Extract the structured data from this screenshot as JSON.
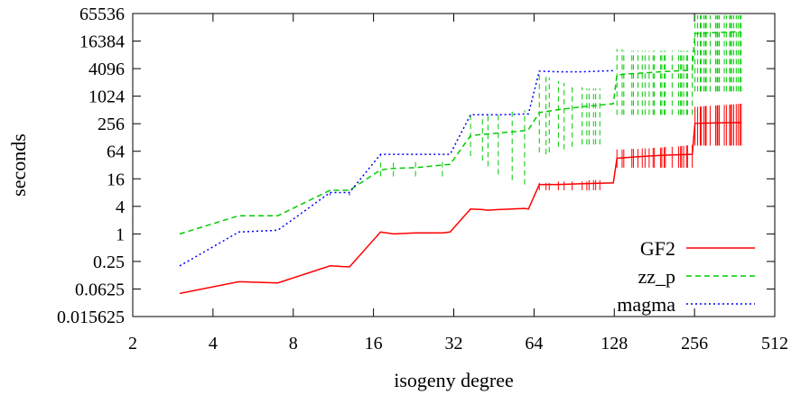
{
  "chart_data": {
    "type": "line",
    "title": "",
    "xlabel": "isogeny degree",
    "ylabel": "seconds",
    "x_scale": "log2",
    "y_scale": "log2",
    "xlim": [
      2,
      512
    ],
    "ylim": [
      0.015625,
      65536
    ],
    "x_ticks": [
      "2",
      "4",
      "8",
      "16",
      "32",
      "64",
      "128",
      "256",
      "512"
    ],
    "y_ticks": [
      "0.015625",
      "0.0625",
      "0.25",
      "1",
      "4",
      "16",
      "64",
      "256",
      "1024",
      "4096",
      "16384",
      "65536"
    ],
    "grid": false,
    "legend_position": "bottom-right",
    "series": [
      {
        "name": "GF2",
        "color": "#ff0000",
        "dash": "solid",
        "points": [
          [
            3,
            0.05
          ],
          [
            5,
            0.09
          ],
          [
            7,
            0.085
          ],
          [
            11,
            0.2
          ],
          [
            13,
            0.19
          ],
          [
            17,
            1.1
          ],
          [
            19,
            1.0
          ],
          [
            23,
            1.05
          ],
          [
            29,
            1.05
          ],
          [
            31,
            1.1
          ],
          [
            37,
            3.5
          ],
          [
            41,
            3.4
          ],
          [
            43,
            3.3
          ],
          [
            47,
            3.4
          ],
          [
            53,
            3.5
          ],
          [
            59,
            3.6
          ],
          [
            61,
            3.5
          ],
          [
            67,
            12
          ],
          [
            79,
            12
          ],
          [
            97,
            12.5
          ],
          [
            127,
            13
          ],
          [
            131,
            45
          ],
          [
            151,
            48
          ],
          [
            191,
            52
          ],
          [
            251,
            55
          ],
          [
            257,
            260
          ],
          [
            300,
            265
          ],
          [
            350,
            270
          ],
          [
            383,
            270
          ]
        ],
        "range_bars": [
          [
            67,
            9,
            13
          ],
          [
            71,
            9,
            13
          ],
          [
            73,
            9,
            13
          ],
          [
            79,
            9,
            14
          ],
          [
            83,
            9,
            14
          ],
          [
            89,
            9,
            14
          ],
          [
            97,
            9,
            14
          ],
          [
            101,
            9,
            14
          ],
          [
            103,
            9,
            15
          ],
          [
            107,
            9,
            15
          ],
          [
            109,
            9,
            15
          ],
          [
            113,
            9,
            15
          ],
          [
            131,
            28,
            70
          ],
          [
            137,
            28,
            70
          ],
          [
            139,
            28,
            70
          ],
          [
            149,
            28,
            72
          ],
          [
            151,
            28,
            72
          ],
          [
            157,
            28,
            72
          ],
          [
            163,
            28,
            74
          ],
          [
            167,
            28,
            74
          ],
          [
            173,
            28,
            74
          ],
          [
            179,
            28,
            76
          ],
          [
            181,
            28,
            76
          ],
          [
            191,
            28,
            76
          ],
          [
            193,
            28,
            78
          ],
          [
            197,
            28,
            78
          ],
          [
            199,
            28,
            80
          ],
          [
            211,
            28,
            80
          ],
          [
            223,
            28,
            82
          ],
          [
            227,
            28,
            82
          ],
          [
            229,
            28,
            84
          ],
          [
            233,
            28,
            84
          ],
          [
            239,
            28,
            86
          ],
          [
            241,
            28,
            86
          ],
          [
            251,
            28,
            88
          ],
          [
            257,
            85,
            600
          ],
          [
            263,
            85,
            600
          ],
          [
            269,
            85,
            610
          ],
          [
            271,
            85,
            610
          ],
          [
            277,
            85,
            620
          ],
          [
            281,
            85,
            620
          ],
          [
            283,
            85,
            630
          ],
          [
            293,
            85,
            630
          ],
          [
            307,
            85,
            640
          ],
          [
            311,
            85,
            640
          ],
          [
            313,
            85,
            650
          ],
          [
            317,
            85,
            650
          ],
          [
            331,
            85,
            660
          ],
          [
            337,
            85,
            660
          ],
          [
            347,
            85,
            670
          ],
          [
            349,
            85,
            670
          ],
          [
            353,
            85,
            680
          ],
          [
            359,
            85,
            680
          ],
          [
            367,
            85,
            690
          ],
          [
            373,
            85,
            690
          ],
          [
            379,
            85,
            700
          ],
          [
            383,
            85,
            700
          ]
        ]
      },
      {
        "name": "zz_p",
        "color": "#00cc00",
        "dash": "6,4",
        "points": [
          [
            3,
            1.0
          ],
          [
            5,
            2.5
          ],
          [
            7,
            2.5
          ],
          [
            11,
            9
          ],
          [
            13,
            9
          ],
          [
            17,
            25
          ],
          [
            19,
            27
          ],
          [
            23,
            28
          ],
          [
            29,
            32
          ],
          [
            31,
            33
          ],
          [
            37,
            140
          ],
          [
            41,
            150
          ],
          [
            47,
            160
          ],
          [
            53,
            170
          ],
          [
            59,
            180
          ],
          [
            61,
            190
          ],
          [
            67,
            450
          ],
          [
            79,
            520
          ],
          [
            97,
            600
          ],
          [
            127,
            700
          ],
          [
            131,
            3000
          ],
          [
            151,
            3200
          ],
          [
            191,
            3500
          ],
          [
            251,
            3800
          ],
          [
            257,
            24000
          ],
          [
            300,
            25000
          ],
          [
            350,
            26000
          ],
          [
            383,
            26000
          ]
        ],
        "range_bars": [
          [
            17,
            18,
            36
          ],
          [
            19,
            18,
            36
          ],
          [
            23,
            18,
            38
          ],
          [
            29,
            18,
            38
          ],
          [
            37,
            50,
            400
          ],
          [
            41,
            40,
            420
          ],
          [
            43,
            30,
            440
          ],
          [
            47,
            20,
            460
          ],
          [
            53,
            15,
            480
          ],
          [
            59,
            12,
            500
          ],
          [
            67,
            60,
            3000
          ],
          [
            71,
            55,
            2800
          ],
          [
            73,
            60,
            2600
          ],
          [
            79,
            80,
            2200
          ],
          [
            83,
            70,
            2000
          ],
          [
            89,
            80,
            1800
          ],
          [
            97,
            90,
            1600
          ],
          [
            101,
            90,
            1500
          ],
          [
            103,
            90,
            1500
          ],
          [
            107,
            90,
            1500
          ],
          [
            109,
            90,
            1500
          ],
          [
            113,
            90,
            1500
          ],
          [
            131,
            400,
            11000
          ],
          [
            137,
            400,
            11000
          ],
          [
            139,
            400,
            10000
          ],
          [
            149,
            400,
            10000
          ],
          [
            151,
            400,
            10000
          ],
          [
            157,
            400,
            10000
          ],
          [
            163,
            400,
            10000
          ],
          [
            167,
            400,
            10000
          ],
          [
            173,
            400,
            10000
          ],
          [
            179,
            400,
            10000
          ],
          [
            181,
            400,
            10000
          ],
          [
            191,
            400,
            10000
          ],
          [
            193,
            400,
            10000
          ],
          [
            197,
            400,
            10000
          ],
          [
            199,
            400,
            10000
          ],
          [
            211,
            400,
            10000
          ],
          [
            223,
            400,
            10000
          ],
          [
            227,
            400,
            10000
          ],
          [
            229,
            400,
            10000
          ],
          [
            233,
            400,
            10000
          ],
          [
            239,
            400,
            10000
          ],
          [
            241,
            400,
            10000
          ],
          [
            251,
            400,
            10000
          ],
          [
            257,
            1300,
            60000
          ],
          [
            263,
            1300,
            60000
          ],
          [
            269,
            1300,
            60000
          ],
          [
            271,
            1300,
            60000
          ],
          [
            277,
            1300,
            60000
          ],
          [
            281,
            1300,
            60000
          ],
          [
            283,
            1300,
            60000
          ],
          [
            293,
            1300,
            60000
          ],
          [
            307,
            1300,
            60000
          ],
          [
            311,
            1300,
            60000
          ],
          [
            313,
            1300,
            60000
          ],
          [
            317,
            1300,
            60000
          ],
          [
            331,
            1300,
            60000
          ],
          [
            337,
            1300,
            60000
          ],
          [
            347,
            1300,
            60000
          ],
          [
            349,
            1300,
            60000
          ],
          [
            353,
            1300,
            60000
          ],
          [
            359,
            1300,
            60000
          ],
          [
            367,
            1300,
            60000
          ],
          [
            373,
            1300,
            60000
          ],
          [
            379,
            1300,
            60000
          ],
          [
            383,
            1300,
            60000
          ]
        ]
      },
      {
        "name": "magma",
        "color": "#0000ff",
        "dash": "2,3",
        "points": [
          [
            3,
            0.2
          ],
          [
            5,
            1.1
          ],
          [
            7,
            1.2
          ],
          [
            11,
            8
          ],
          [
            13,
            8
          ],
          [
            17,
            55
          ],
          [
            19,
            55
          ],
          [
            23,
            55
          ],
          [
            29,
            55
          ],
          [
            31,
            55
          ],
          [
            37,
            400
          ],
          [
            47,
            400
          ],
          [
            61,
            420
          ],
          [
            67,
            3600
          ],
          [
            79,
            3500
          ],
          [
            97,
            3500
          ],
          [
            127,
            3700
          ]
        ],
        "range_bars": [
          [
            11,
            7,
            9
          ],
          [
            13,
            7,
            9
          ],
          [
            17,
            50,
            60
          ]
        ]
      }
    ]
  }
}
